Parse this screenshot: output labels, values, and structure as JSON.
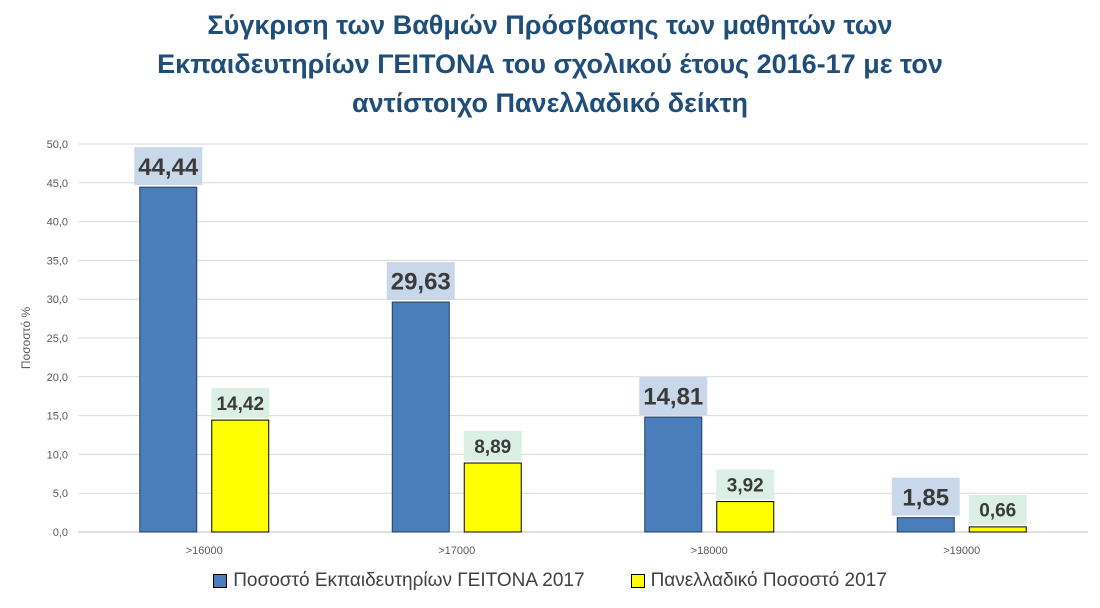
{
  "chart_data": {
    "type": "bar",
    "title_lines": [
      "Σύγκριση των Βαθμών Πρόσβασης των μαθητών των",
      "Εκπαιδευτηρίων ΓΕΙΤΟΝΑ του σχολικού έτους 2016-17 με τον",
      "αντίστοιχο Πανελλαδικό δείκτη"
    ],
    "ylabel": "Ποσοστό %",
    "xlabel": "",
    "ylim": [
      0,
      50
    ],
    "y_ticks": [
      "0,0",
      "5,0",
      "10,0",
      "15,0",
      "20,0",
      "25,0",
      "30,0",
      "35,0",
      "40,0",
      "45,0",
      "50,0"
    ],
    "categories": [
      ">16000",
      ">17000",
      ">18000",
      ">19000"
    ],
    "grid": true,
    "legend_position": "bottom",
    "series": [
      {
        "name": "Ποσοστό Εκπαιδευτηρίων ΓΕΙΤΟΝΑ 2017",
        "color": "#4a7ebb",
        "label_bg": "#c8d8ea",
        "values": [
          44.44,
          29.63,
          14.81,
          1.85
        ],
        "labels": [
          "44,44",
          "29,63",
          "14,81",
          "1,85"
        ]
      },
      {
        "name": "Πανελλαδικό Ποσοστό 2017",
        "color": "#ffff00",
        "label_bg": "#dcefe6",
        "values": [
          14.42,
          8.89,
          3.92,
          0.66
        ],
        "labels": [
          "14,42",
          "8,89",
          "3,92",
          "0,66"
        ]
      }
    ]
  }
}
